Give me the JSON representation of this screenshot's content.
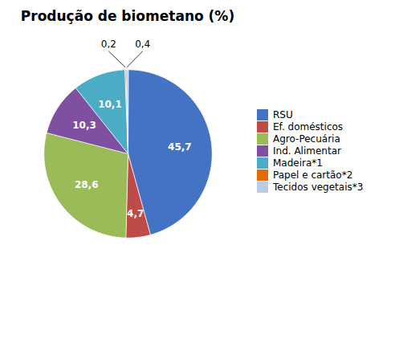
{
  "chart_data": {
    "type": "pie",
    "title": "Produção de biometano (%)",
    "categories": [
      "RSU",
      "Ef. domésticos",
      "Agro-Pecuária",
      "Ind. Alimentar",
      "Madeira*1",
      "Papel e cartão*2",
      "Tecidos vegetais*3"
    ],
    "values": [
      45.7,
      4.7,
      28.6,
      10.3,
      10.1,
      0.2,
      0.4
    ],
    "value_labels": [
      "45,7",
      "4,7",
      "28,6",
      "10,3",
      "10,1",
      "0,2",
      "0,4"
    ],
    "colors": [
      "#4472C4",
      "#BE4B48",
      "#9BBB59",
      "#7F4FA0",
      "#4BACC6",
      "#E36C09",
      "#B8CCE4"
    ],
    "data_labels": true,
    "legend": "right"
  }
}
